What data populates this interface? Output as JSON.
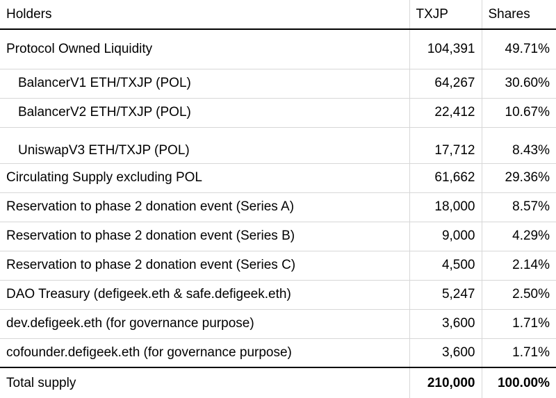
{
  "table": {
    "headers": {
      "holders": "Holders",
      "txjp": "TXJP",
      "shares": "Shares"
    },
    "rows": [
      {
        "holder": "Protocol Owned Liquidity",
        "txjp": "104,391",
        "shares": "49.71%"
      },
      {
        "holder": "BalancerV1 ETH/TXJP (POL)",
        "txjp": "64,267",
        "shares": "30.60%"
      },
      {
        "holder": "BalancerV2 ETH/TXJP (POL)",
        "txjp": "22,412",
        "shares": "10.67%"
      },
      {
        "holder": "UniswapV3 ETH/TXJP (POL)",
        "txjp": "17,712",
        "shares": "8.43%"
      },
      {
        "holder": "Circulating Supply excluding POL",
        "txjp": "61,662",
        "shares": "29.36%"
      },
      {
        "holder": "Reservation to phase 2 donation event (Series A)",
        "txjp": "18,000",
        "shares": "8.57%"
      },
      {
        "holder": "Reservation to phase 2 donation event (Series B)",
        "txjp": "9,000",
        "shares": "4.29%"
      },
      {
        "holder": "Reservation to phase 2 donation event (Series C)",
        "txjp": "4,500",
        "shares": "2.14%"
      },
      {
        "holder": "DAO Treasury (defigeek.eth & safe.defigeek.eth)",
        "txjp": "5,247",
        "shares": "2.50%"
      },
      {
        "holder": "dev.defigeek.eth (for governance purpose)",
        "txjp": "3,600",
        "shares": "1.71%"
      },
      {
        "holder": "cofounder.defigeek.eth (for governance purpose)",
        "txjp": "3,600",
        "shares": "1.71%"
      }
    ],
    "total": {
      "holder": "Total supply",
      "txjp": "210,000",
      "shares": "100.00%"
    }
  }
}
